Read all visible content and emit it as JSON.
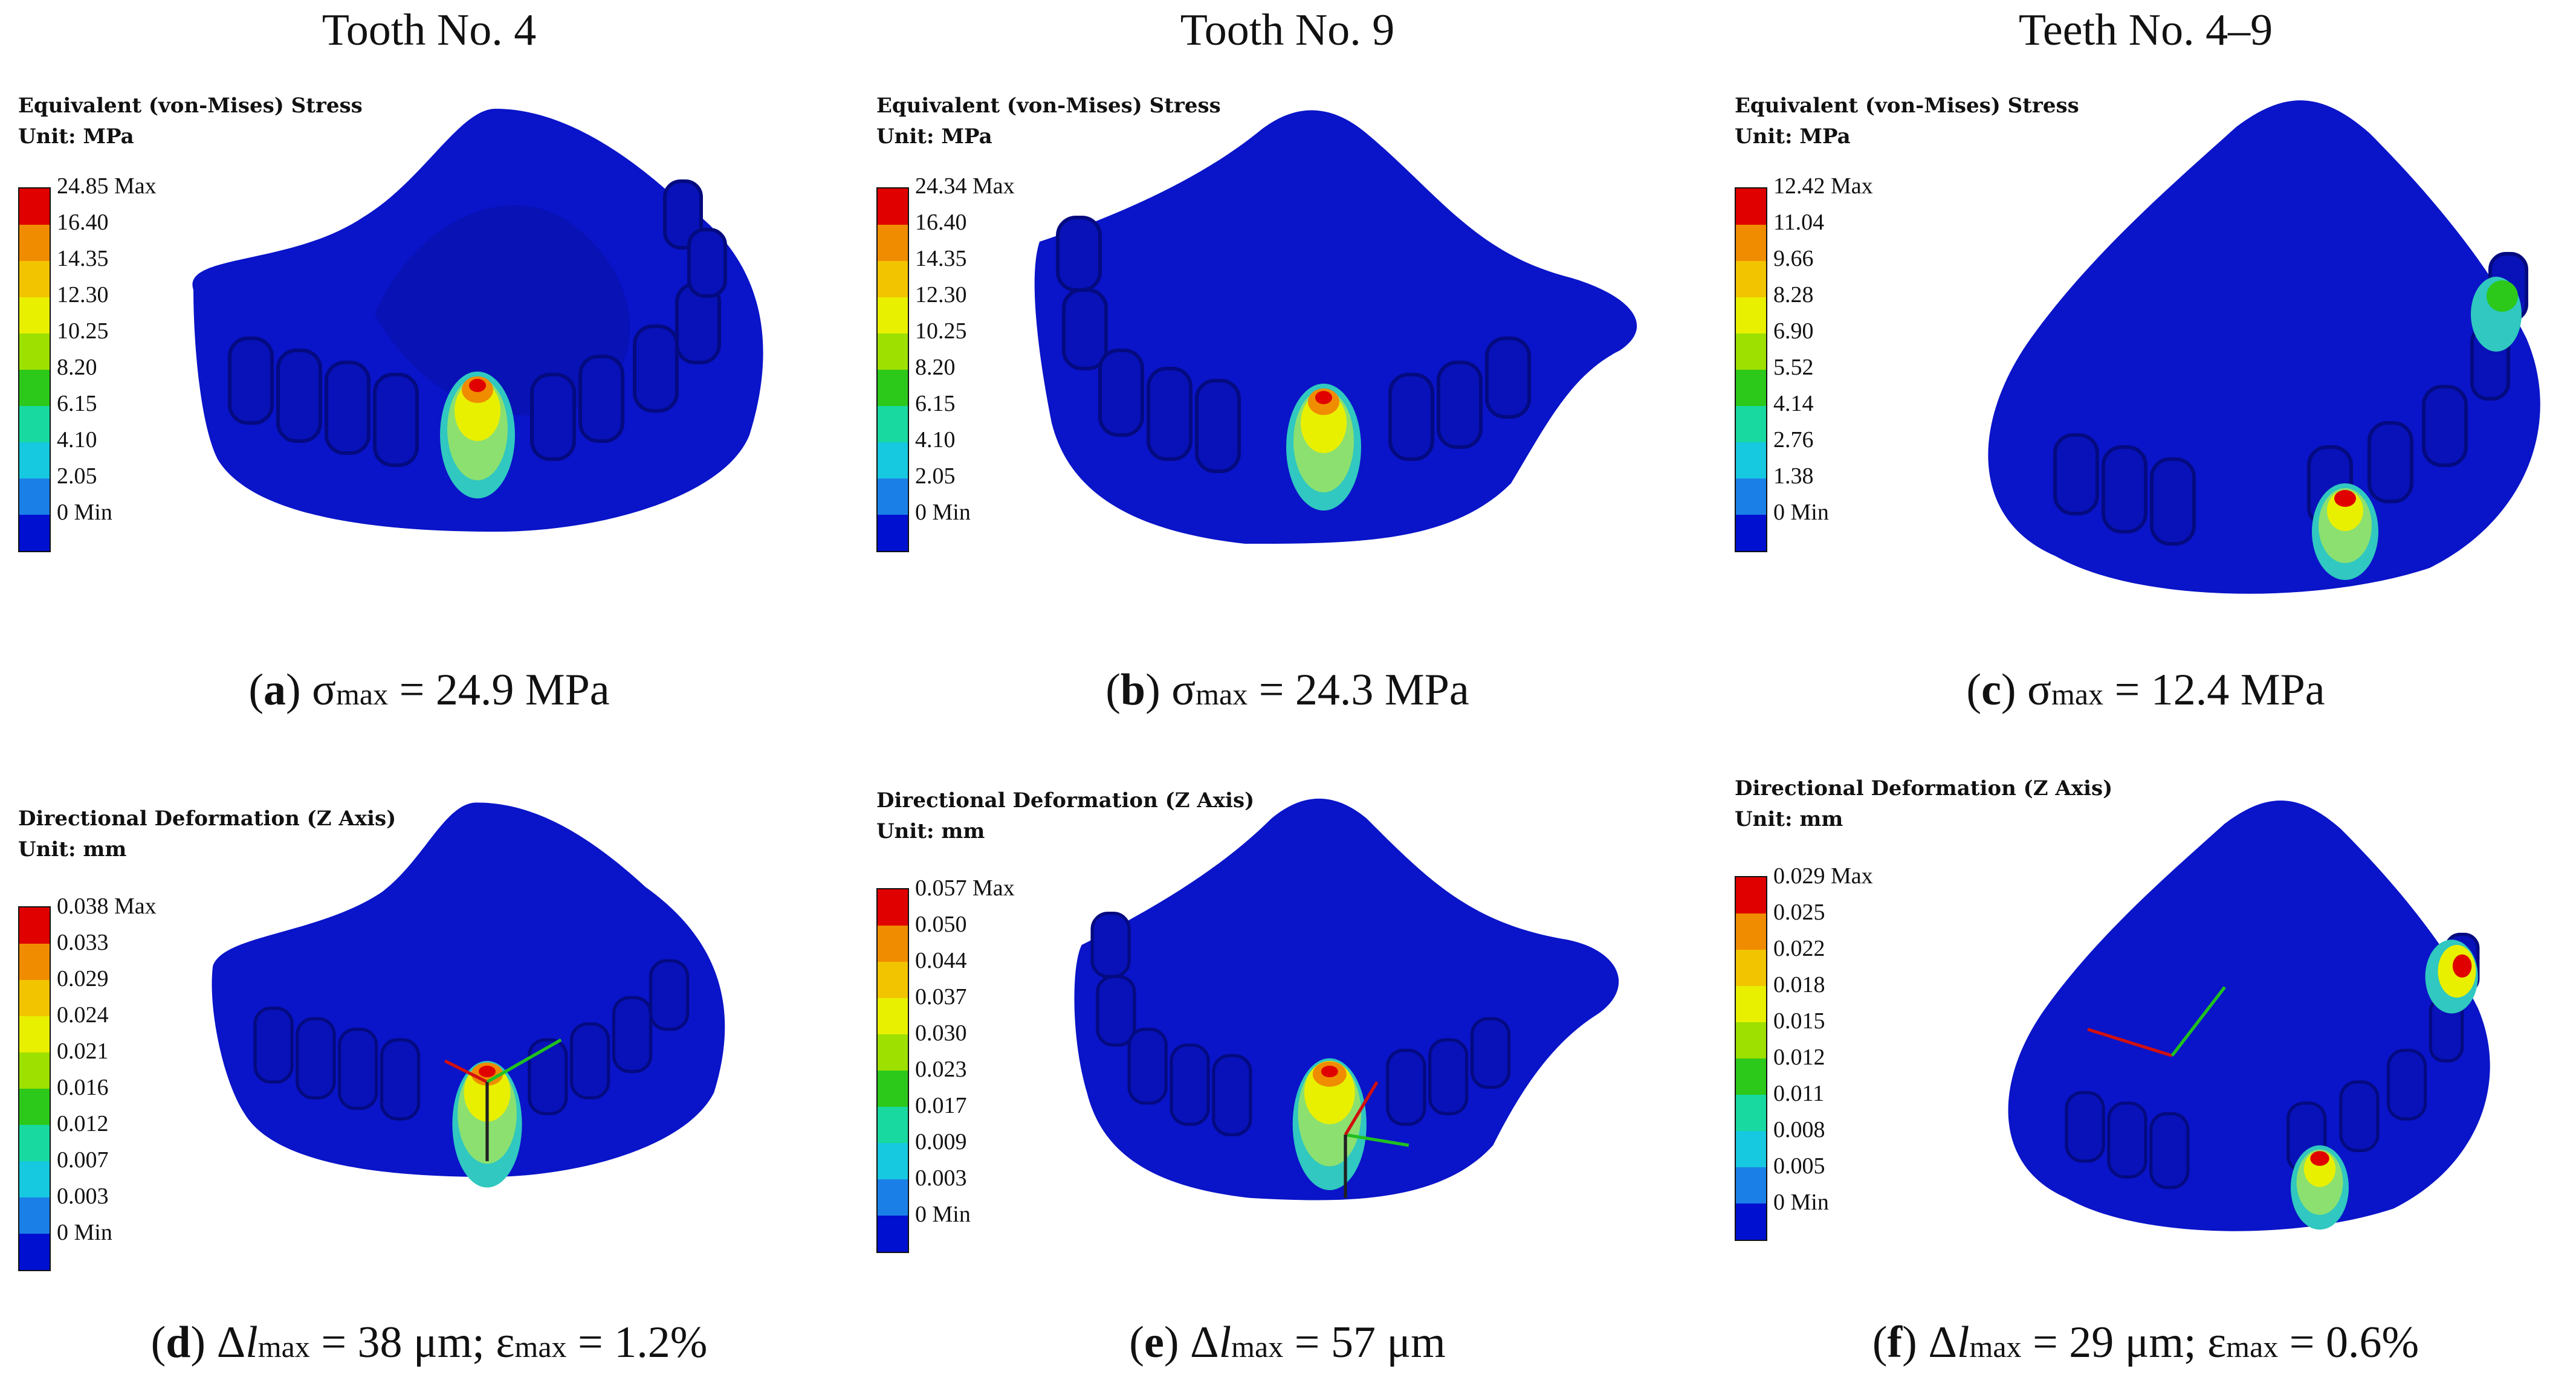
{
  "columns": [
    "Tooth No. 4",
    "Tooth No. 9",
    "Teeth No. 4–9"
  ],
  "panels": [
    {
      "letter": "a",
      "legend": {
        "title": "Equivalent (von-Mises) Stress",
        "unit": "Unit: MPa",
        "ticks": [
          "24.85 Max",
          "16.40",
          "14.35",
          "12.30",
          "10.25",
          "8.20",
          "6.15",
          "4.10",
          "2.05",
          "0 Min"
        ]
      },
      "caption": {
        "symbol": "σ",
        "sub": "max",
        "rest": " = 24.9 MPa"
      }
    },
    {
      "letter": "b",
      "legend": {
        "title": "Equivalent (von-Mises) Stress",
        "unit": "Unit: MPa",
        "ticks": [
          "24.34 Max",
          "16.40",
          "14.35",
          "12.30",
          "10.25",
          "8.20",
          "6.15",
          "4.10",
          "2.05",
          "0 Min"
        ]
      },
      "caption": {
        "symbol": "σ",
        "sub": "max",
        "rest": " = 24.3 MPa"
      }
    },
    {
      "letter": "c",
      "legend": {
        "title": "Equivalent (von-Mises) Stress",
        "unit": "Unit: MPa",
        "ticks": [
          "12.42 Max",
          "11.04",
          "9.66",
          "8.28",
          "6.90",
          "5.52",
          "4.14",
          "2.76",
          "1.38",
          "0 Min"
        ]
      },
      "caption": {
        "symbol": "σ",
        "sub": "max",
        "rest": " = 12.4 MPa"
      }
    },
    {
      "letter": "d",
      "legend": {
        "title": "Directional Deformation (Z Axis)",
        "unit": "Unit: mm",
        "ticks": [
          "0.038 Max",
          "0.033",
          "0.029",
          "0.024",
          "0.021",
          "0.016",
          "0.012",
          "0.007",
          "0.003",
          "0 Min"
        ]
      },
      "caption": {
        "symbol": "Δ",
        "italic": "l",
        "sub": "max",
        "rest": " = 38 μm; ε",
        "sub2": "max",
        "rest2": " = 1.2%"
      }
    },
    {
      "letter": "e",
      "legend": {
        "title": "Directional Deformation (Z Axis)",
        "unit": "Unit: mm",
        "ticks": [
          "0.057 Max",
          "0.050",
          "0.044",
          "0.037",
          "0.030",
          "0.023",
          "0.017",
          "0.009",
          "0.003",
          "0 Min"
        ]
      },
      "caption": {
        "symbol": "Δ",
        "italic": "l",
        "sub": "max",
        "rest": " = 57 μm"
      }
    },
    {
      "letter": "f",
      "legend": {
        "title": "Directional Deformation (Z Axis)",
        "unit": "Unit: mm",
        "ticks": [
          "0.029 Max",
          "0.025",
          "0.022",
          "0.018",
          "0.015",
          "0.012",
          "0.011",
          "0.008",
          "0.005",
          "0 Min"
        ]
      },
      "caption": {
        "symbol": "Δ",
        "italic": "l",
        "sub": "max",
        "rest": " = 29 μm; ε",
        "sub2": "max",
        "rest2": " = 0.6%"
      }
    }
  ],
  "colors": {
    "denture": "#0a14c8",
    "scale": [
      "#e00000",
      "#f08c00",
      "#f2c400",
      "#e8f000",
      "#9ee000",
      "#2cc81a",
      "#18d9a0",
      "#16c8e0",
      "#1a80e8",
      "#0010d0"
    ]
  }
}
